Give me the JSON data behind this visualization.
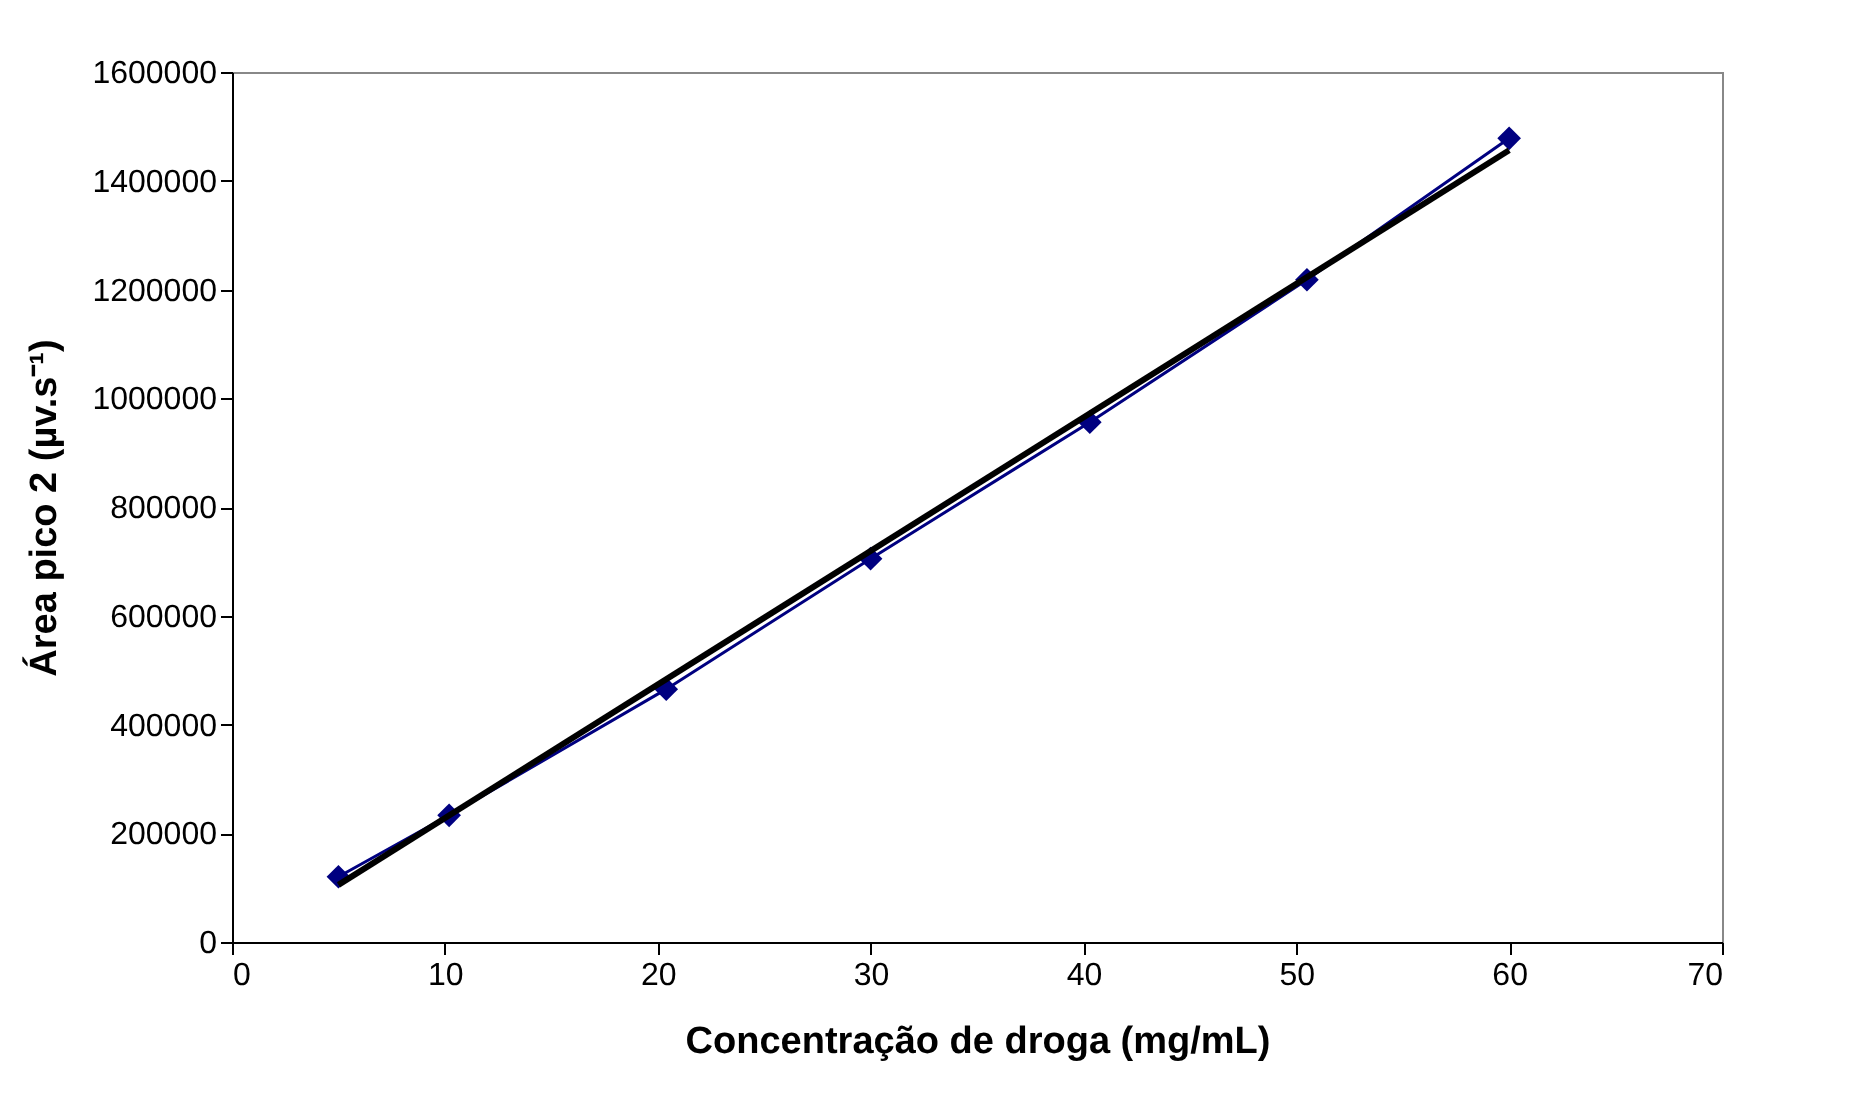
{
  "chart_data": {
    "type": "scatter",
    "xlabel": "Concentração de droga  (mg/mL)",
    "ylabel": "Área pico 2 (µv.s⁻¹)",
    "xlim": [
      0,
      70
    ],
    "xticks": [
      0,
      10,
      20,
      30,
      40,
      50,
      60,
      70
    ],
    "ylim": [
      0,
      1600000
    ],
    "yticks": [
      0,
      200000,
      400000,
      600000,
      800000,
      1000000,
      1200000,
      1400000,
      1600000
    ],
    "grid": false,
    "marker": "diamond",
    "series": [
      {
        "type": "line",
        "color": "#000080",
        "x": [
          5,
          10.2,
          20.4,
          30,
          40.3,
          50.5,
          60
        ],
        "values": [
          120000,
          233000,
          465000,
          705000,
          956000,
          1218000,
          1478000
        ]
      },
      {
        "type": "line",
        "color": "#000000",
        "marker": "none",
        "x": [
          5,
          60
        ],
        "values": [
          105000,
          1456000
        ]
      }
    ]
  }
}
